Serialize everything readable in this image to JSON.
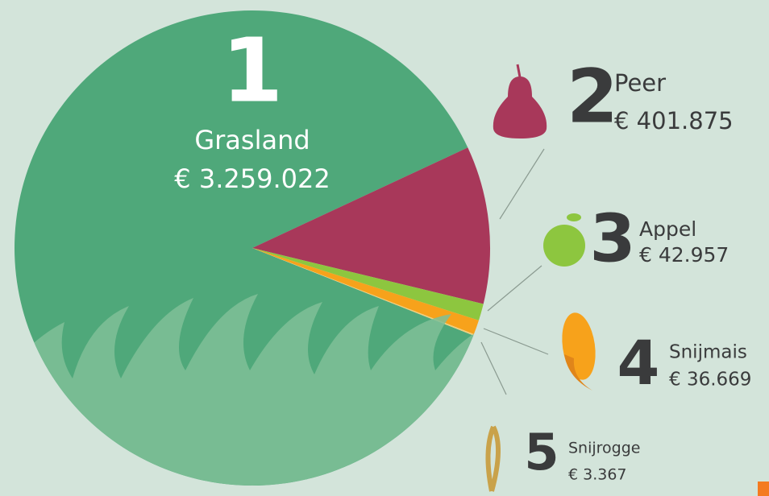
{
  "chart_data": {
    "type": "pie",
    "categories": [
      "Grasland",
      "Peer",
      "Appel",
      "Snijmais",
      "Snijrogge"
    ],
    "ranks": [
      1,
      2,
      3,
      4,
      5
    ],
    "values": [
      3259022,
      401875,
      42957,
      36669,
      3367
    ],
    "value_labels": [
      "€ 3.259.022",
      "€ 401.875",
      "€ 42.957",
      "€ 36.669",
      "€ 3.367"
    ],
    "colors": [
      "#4fa87a",
      "#a8385a",
      "#8dc63f",
      "#f7a21b",
      "#f2cf7d"
    ]
  }
}
